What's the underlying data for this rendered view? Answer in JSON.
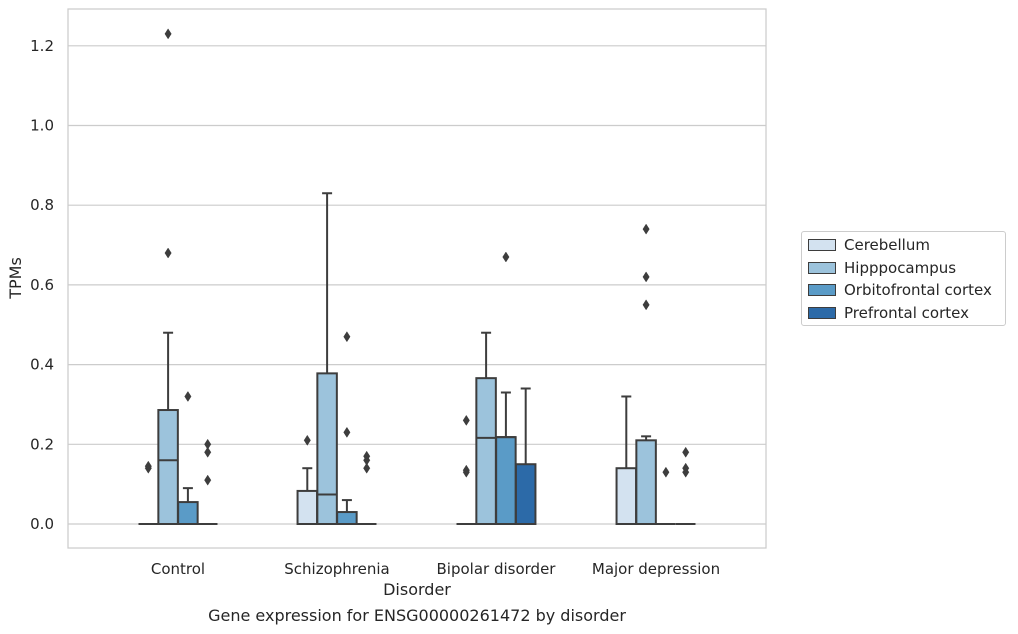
{
  "caption": "Gene expression for ENSG00000261472 by disorder",
  "chart_data": {
    "type": "box",
    "xlabel": "Disorder",
    "ylabel": "TPMs",
    "ylim": [
      -0.06,
      1.29
    ],
    "yticks": [
      "0.0",
      "0.2",
      "0.4",
      "0.6",
      "0.8",
      "1.0",
      "1.2"
    ],
    "grid": true,
    "legend_position": "right",
    "categories": [
      "Control",
      "Schizophrenia",
      "Bipolar disorder",
      "Major depression"
    ],
    "series": [
      {
        "name": "Cerebellum",
        "color": "#d3e2f0",
        "boxes": [
          {
            "min": 0,
            "q1": 0,
            "median": 0,
            "q3": 0,
            "max": 0,
            "outliers": [
              0.14,
              0.145
            ]
          },
          {
            "min": 0,
            "q1": 0,
            "median": 0,
            "q3": 0.083,
            "max": 0.14,
            "outliers": [
              0.21
            ]
          },
          {
            "min": 0,
            "q1": 0,
            "median": 0,
            "q3": 0,
            "max": 0,
            "outliers": [
              0.13,
              0.135,
              0.26
            ]
          },
          {
            "min": 0,
            "q1": 0,
            "median": 0,
            "q3": 0.14,
            "max": 0.32,
            "outliers": []
          }
        ]
      },
      {
        "name": "Hipppocampus",
        "color": "#9cc3dc",
        "boxes": [
          {
            "min": 0,
            "q1": 0,
            "median": 0.16,
            "q3": 0.286,
            "max": 0.48,
            "outliers": [
              0.68,
              1.23
            ]
          },
          {
            "min": 0,
            "q1": 0,
            "median": 0.074,
            "q3": 0.378,
            "max": 0.83,
            "outliers": []
          },
          {
            "min": 0,
            "q1": 0,
            "median": 0.216,
            "q3": 0.366,
            "max": 0.48,
            "outliers": []
          },
          {
            "min": 0,
            "q1": 0,
            "median": 0,
            "q3": 0.21,
            "max": 0.22,
            "outliers": [
              0.55,
              0.62,
              0.74
            ]
          }
        ]
      },
      {
        "name": "Orbitofrontal cortex",
        "color": "#5a9bc7",
        "boxes": [
          {
            "min": 0,
            "q1": 0,
            "median": 0,
            "q3": 0.055,
            "max": 0.09,
            "outliers": [
              0.32
            ]
          },
          {
            "min": 0,
            "q1": 0,
            "median": 0,
            "q3": 0.03,
            "max": 0.06,
            "outliers": [
              0.23,
              0.47
            ]
          },
          {
            "min": 0,
            "q1": 0,
            "median": 0.218,
            "q3": 0.218,
            "max": 0.33,
            "outliers": [
              0.67
            ]
          },
          {
            "min": 0,
            "q1": 0,
            "median": 0,
            "q3": 0,
            "max": 0,
            "outliers": [
              0.13
            ]
          }
        ]
      },
      {
        "name": "Prefrontal cortex",
        "color": "#2c6aa8",
        "boxes": [
          {
            "min": 0,
            "q1": 0,
            "median": 0,
            "q3": 0,
            "max": 0,
            "outliers": [
              0.11,
              0.18,
              0.2
            ]
          },
          {
            "min": 0,
            "q1": 0,
            "median": 0,
            "q3": 0,
            "max": 0,
            "outliers": [
              0.14,
              0.16,
              0.17
            ]
          },
          {
            "min": 0,
            "q1": 0,
            "median": 0,
            "q3": 0.15,
            "max": 0.34,
            "outliers": []
          },
          {
            "min": 0,
            "q1": 0,
            "median": 0,
            "q3": 0,
            "max": 0,
            "outliers": [
              0.13,
              0.14,
              0.18
            ]
          }
        ]
      }
    ]
  }
}
